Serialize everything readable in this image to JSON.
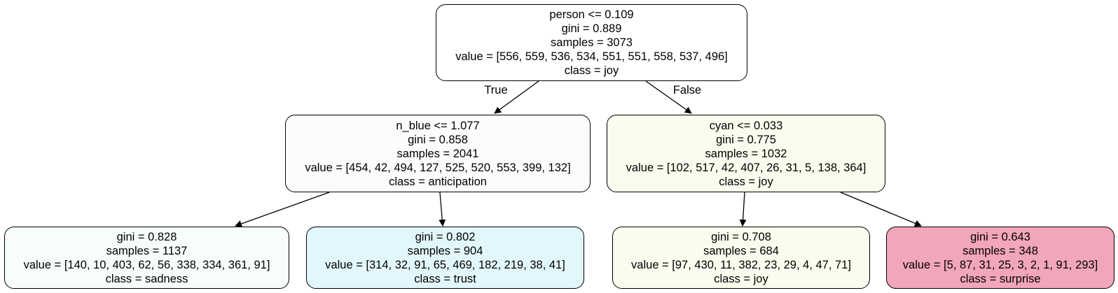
{
  "tree": {
    "nodes": {
      "root": {
        "split": "person <= 0.109",
        "gini": "gini = 0.889",
        "samples": "samples = 3073",
        "value": "value = [556, 559, 536, 534, 551, 551, 558, 537, 496]",
        "class": "class = joy",
        "fill": "#ffffff"
      },
      "left": {
        "split": "n_blue <= 1.077",
        "gini": "gini = 0.858",
        "samples": "samples = 2041",
        "value": "value = [454, 42, 494, 127, 525, 520, 553, 399, 132]",
        "class": "class = anticipation",
        "fill": "#fcfcff"
      },
      "right": {
        "split": "cyan <= 0.033",
        "gini": "gini = 0.775",
        "samples": "samples = 1032",
        "value": "value = [102, 517, 42, 407, 26, 31, 5, 138, 364]",
        "class": "class = joy",
        "fill": "#fafcee"
      },
      "left_left": {
        "gini": "gini = 0.828",
        "samples": "samples = 1137",
        "value": "value = [140, 10, 403, 62, 56, 338, 334, 361, 91]",
        "class": "class = sadness",
        "fill": "#f7fdf8"
      },
      "left_right": {
        "gini": "gini = 0.802",
        "samples": "samples = 904",
        "value": "value = [314, 32, 91, 65, 469, 182, 219, 38, 41]",
        "class": "class = trust",
        "fill": "#e2f7fb"
      },
      "right_left": {
        "gini": "gini = 0.708",
        "samples": "samples = 684",
        "value": "value = [97, 430, 11, 382, 23, 29, 4, 47, 71]",
        "class": "class = joy",
        "fill": "#fafcee"
      },
      "right_right": {
        "gini": "gini = 0.643",
        "samples": "samples = 348",
        "value": "value = [5, 87, 31, 25, 3, 2, 1, 91, 293]",
        "class": "class = surprise",
        "fill": "#f2a6b9"
      }
    },
    "edge_labels": {
      "true": "True",
      "false": "False"
    }
  }
}
